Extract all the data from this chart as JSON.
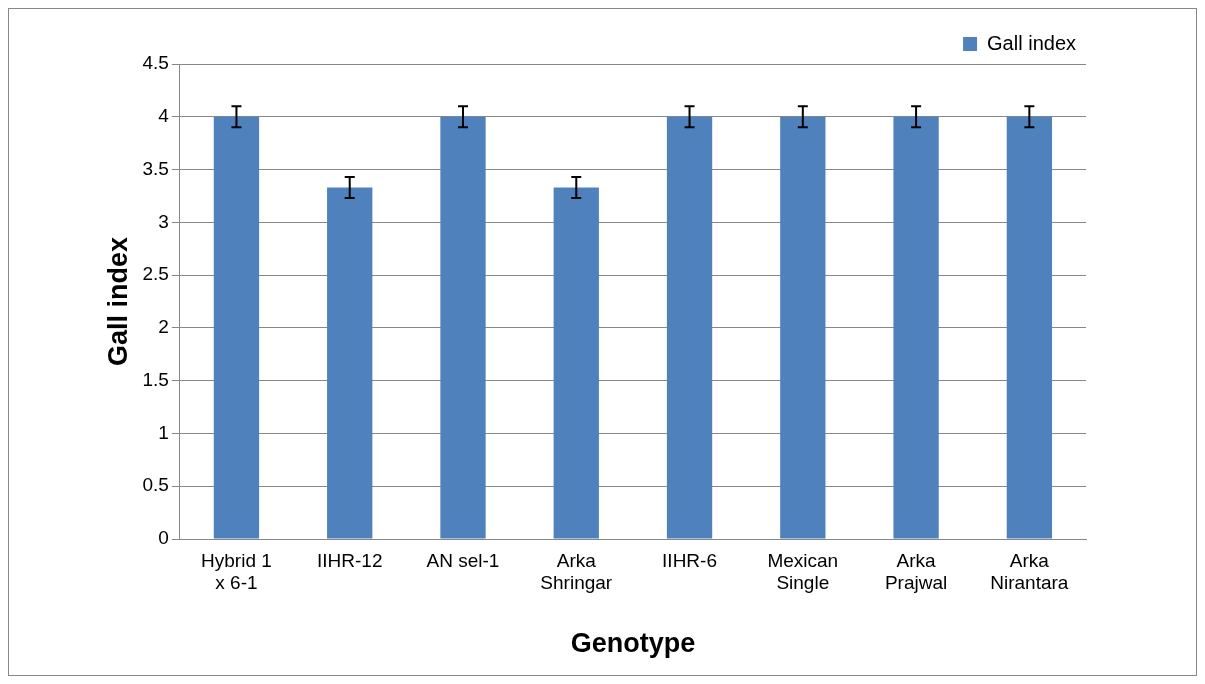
{
  "chart_data": {
    "type": "bar",
    "xlabel": "Genotype",
    "ylabel": "Gall index",
    "categories": [
      "Hybrid 1 x 6-1",
      "IIHR-12",
      "AN sel-1",
      "Arka Shringar",
      "IIHR-6",
      "Mexican Single",
      "Arka Prajwal",
      "Arka Nirantara"
    ],
    "series": [
      {
        "name": "Gall index",
        "color": "#4f81bd",
        "values": [
          4,
          3.33,
          4,
          3.33,
          4,
          4,
          4,
          4
        ],
        "errors": [
          0.1,
          0.1,
          0.1,
          0.1,
          0.1,
          0.1,
          0.1,
          0.1
        ]
      }
    ],
    "ylim": [
      0,
      4.5
    ],
    "yticks": [
      0,
      0.5,
      1,
      1.5,
      2,
      2.5,
      3,
      3.5,
      4,
      4.5
    ],
    "grid": "y",
    "legend": "top right"
  }
}
